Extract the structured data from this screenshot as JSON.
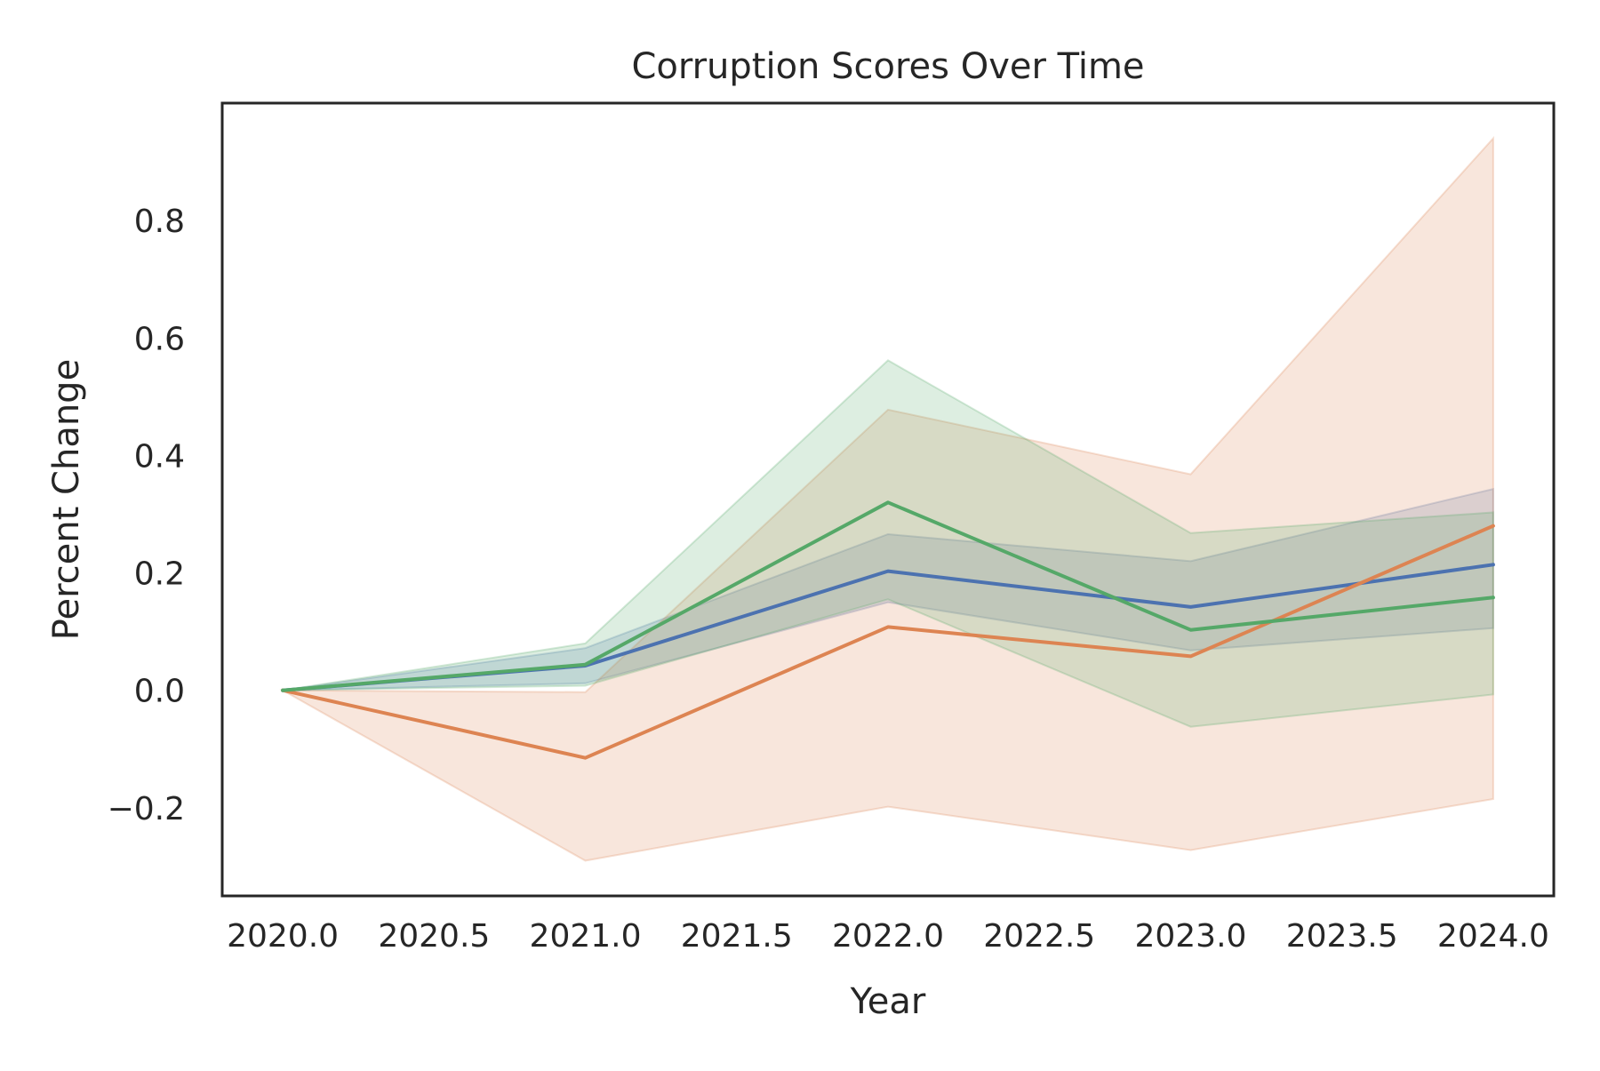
{
  "chart_data": {
    "type": "line",
    "title": "Corruption Scores Over Time",
    "xlabel": "Year",
    "ylabel": "Percent Change",
    "xlim": [
      2019.8,
      2024.2
    ],
    "ylim": [
      -0.35,
      1.0
    ],
    "xticks": [
      2020.0,
      2020.5,
      2021.0,
      2021.5,
      2022.0,
      2022.5,
      2023.0,
      2023.5,
      2024.0
    ],
    "xtick_labels": [
      "2020.0",
      "2020.5",
      "2021.0",
      "2021.5",
      "2022.0",
      "2022.5",
      "2023.0",
      "2023.5",
      "2024.0"
    ],
    "yticks": [
      -0.2,
      0.0,
      0.2,
      0.4,
      0.6,
      0.8
    ],
    "ytick_labels": [
      "−0.2",
      "0.0",
      "0.2",
      "0.4",
      "0.6",
      "0.8"
    ],
    "grid": false,
    "legend": false,
    "x": [
      2020,
      2021,
      2022,
      2023,
      2024
    ],
    "series": [
      {
        "color": "#4c72b0",
        "values": [
          0.0,
          0.042,
          0.203,
          0.142,
          0.214
        ],
        "lower": [
          0.0,
          0.012,
          0.15,
          0.068,
          0.106
        ],
        "upper": [
          0.0,
          0.072,
          0.266,
          0.22,
          0.343
        ]
      },
      {
        "color": "#dd8452",
        "values": [
          0.0,
          -0.115,
          0.108,
          0.058,
          0.28
        ],
        "lower": [
          0.0,
          -0.29,
          -0.198,
          -0.272,
          -0.185
        ],
        "upper": [
          0.0,
          -0.003,
          0.478,
          0.368,
          0.94
        ]
      },
      {
        "color": "#55a868",
        "values": [
          0.0,
          0.044,
          0.32,
          0.103,
          0.158
        ],
        "lower": [
          0.0,
          0.008,
          0.155,
          -0.062,
          -0.007
        ],
        "upper": [
          0.0,
          0.08,
          0.562,
          0.268,
          0.303
        ]
      }
    ]
  }
}
